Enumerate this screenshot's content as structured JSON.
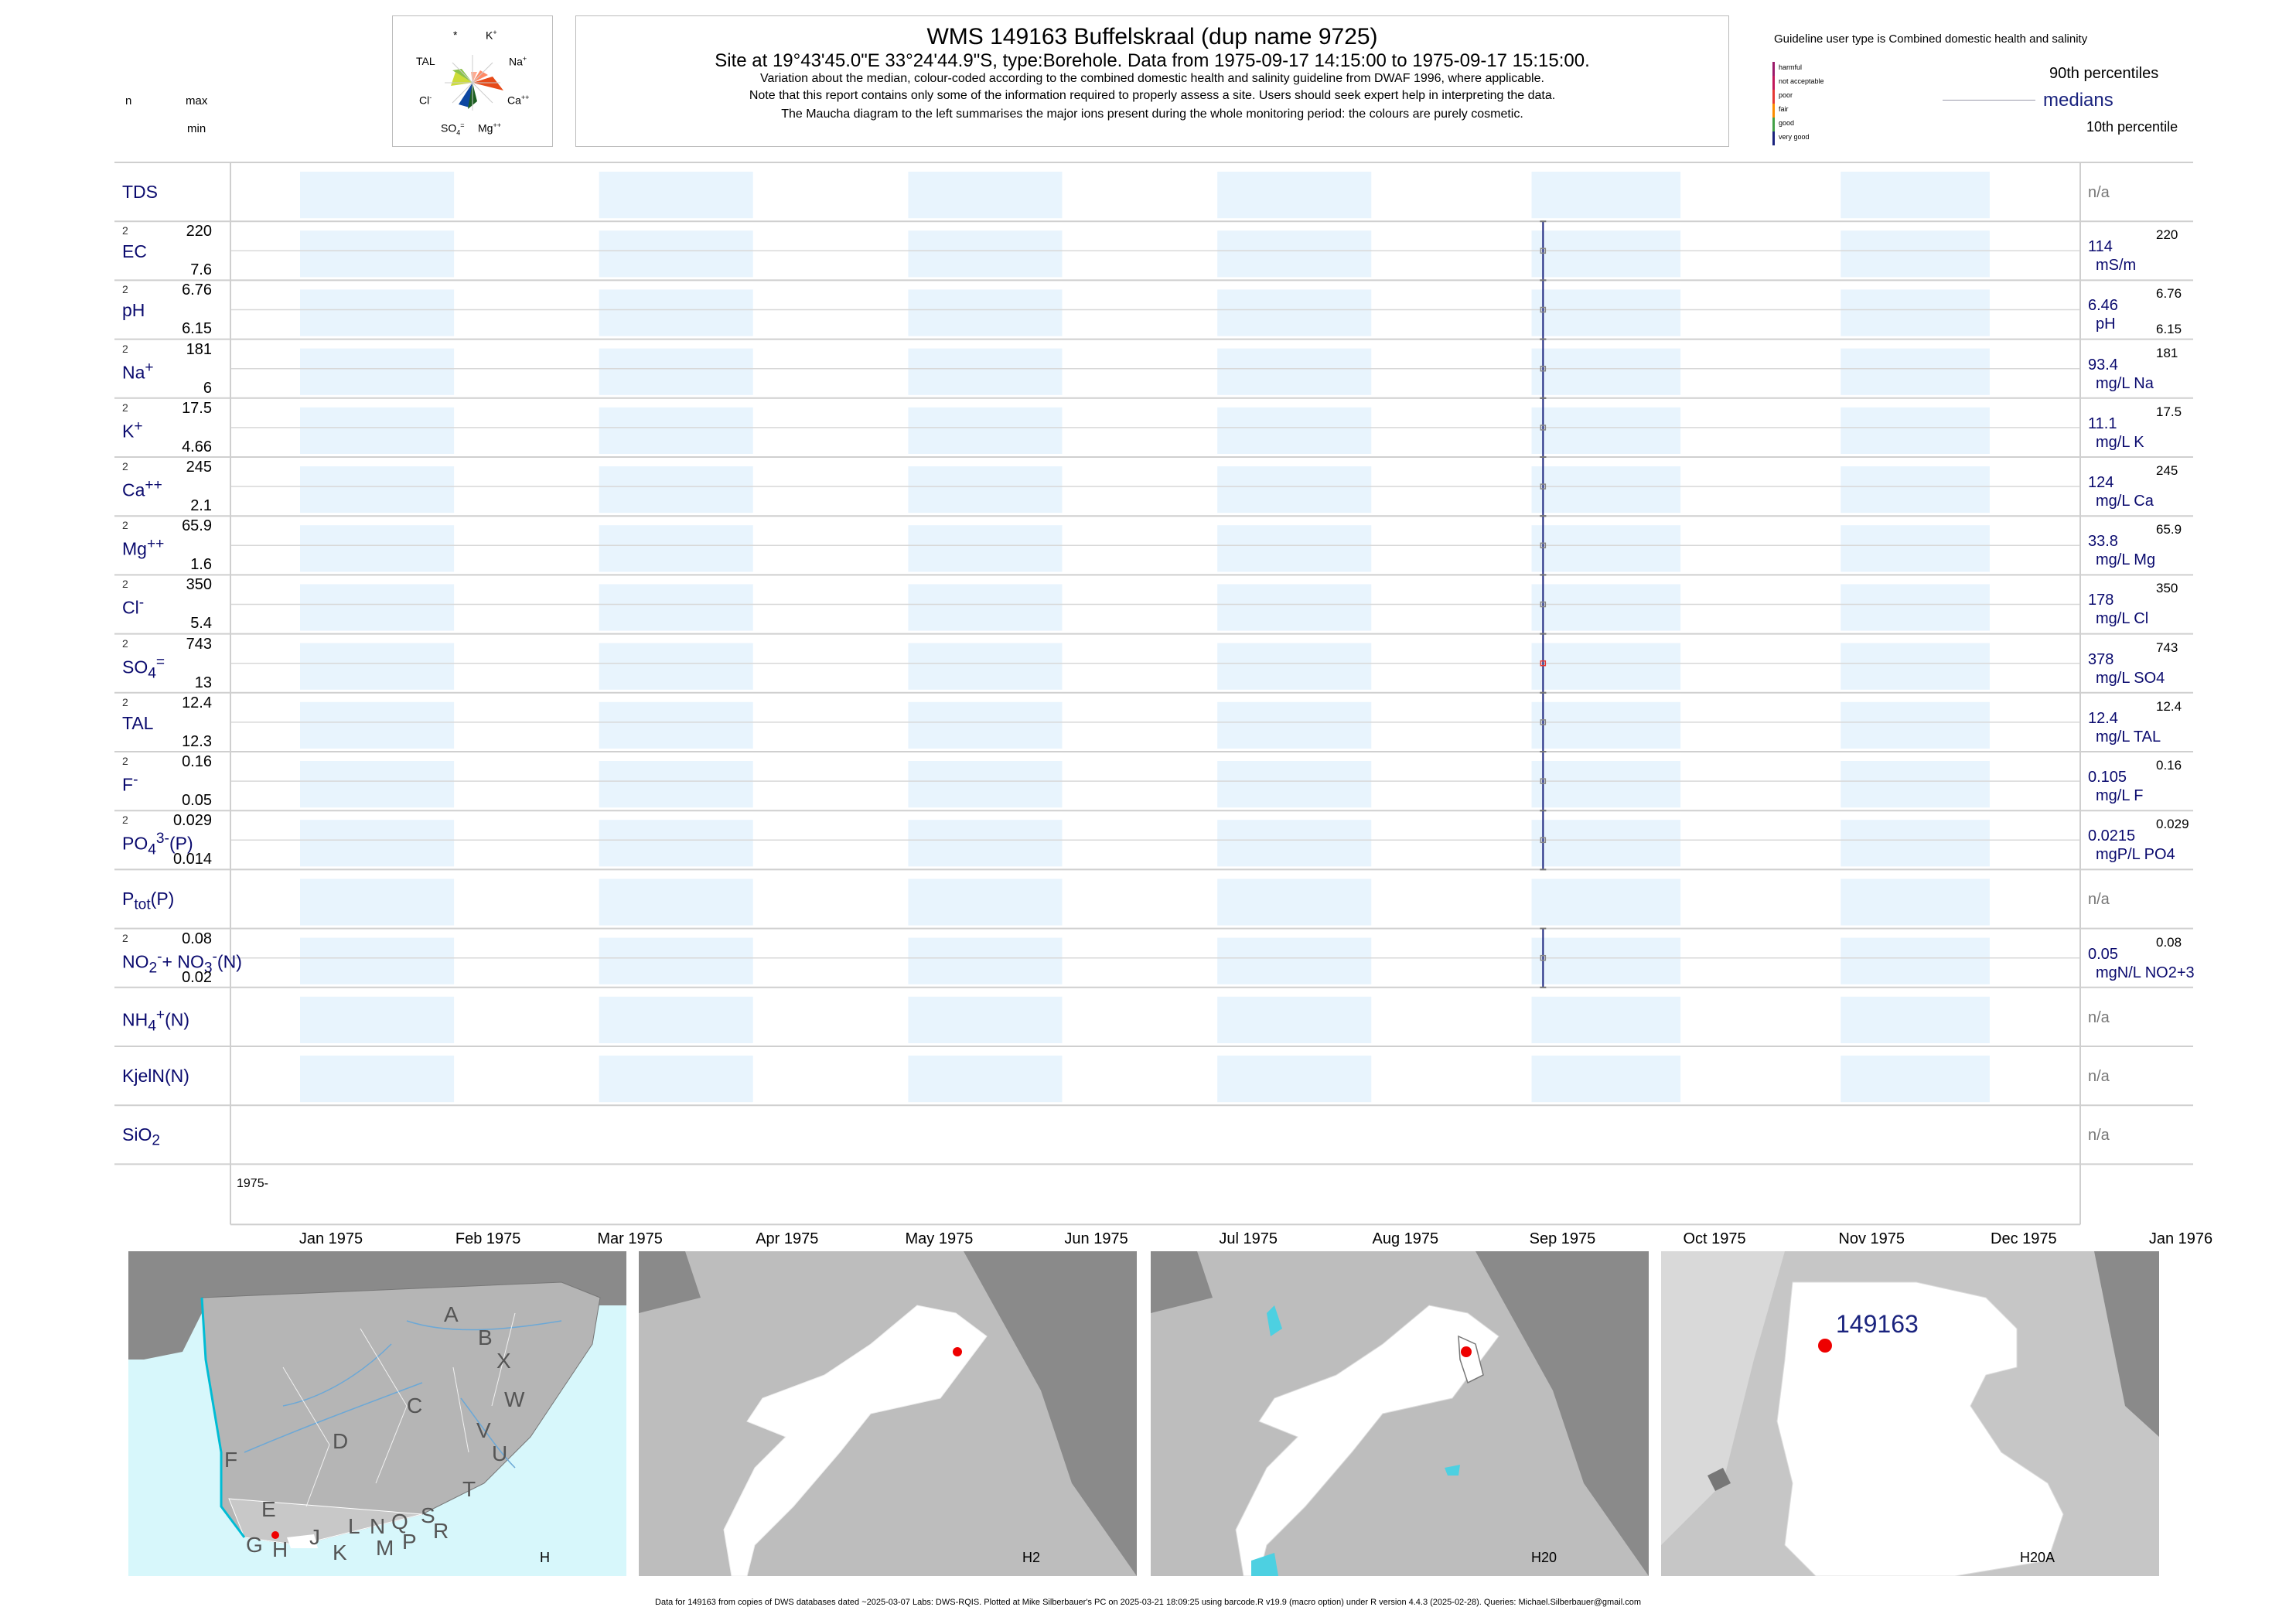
{
  "header": {
    "title": "WMS 149163  Buffelskraal (dup name 9725)",
    "subtitle": "Site at 19°43'45.0\"E 33°24'44.9\"S, type:Borehole.  Data from 1975-09-17 14:15:00 to 1975-09-17 15:15:00.",
    "line1": "Variation about the median,  colour-coded according to the combined domestic health and salinity guideline from DWAF 1996, where applicable.",
    "line2": "Note that this report contains only some of the information required to properly assess a site. Users should seek expert help in interpreting the data.",
    "line3": "The Maucha diagram to the left summarises the major ions present during the whole monitoring period: the colours are purely cosmetic."
  },
  "left_key": {
    "n": "n",
    "max": "max",
    "min": "min"
  },
  "maucha": {
    "labels": {
      "star": "*",
      "k": "K",
      "k_sup": "+",
      "tal": "TAL",
      "na": "Na",
      "na_sup": "+",
      "cl": "Cl",
      "cl_sup": "-",
      "ca": "Ca",
      "ca_sup": "++",
      "so4": "SO",
      "so4_sub": "4",
      "so4_sup": "=",
      "mg": "Mg",
      "mg_sup": "++"
    }
  },
  "guideline": {
    "title": "Guideline user type is Combined domestic health and salinity",
    "levels": [
      "harmful",
      "not acceptable",
      "poor",
      "fair",
      "good",
      "very good"
    ],
    "colors": [
      "#9b1b6a",
      "#c2185b",
      "#e53935",
      "#fb8c00",
      "#43a047",
      "#1a237e"
    ],
    "p90": "90th percentiles",
    "medians": "medians",
    "p10": "10th percentile"
  },
  "chart_data": {
    "type": "timeseries-panel",
    "x_range": [
      "1975-01-01",
      "1976-01-01"
    ],
    "axis_start_label": "1975-",
    "x_ticks": [
      "Jan 1975",
      "Feb 1975",
      "Mar 1975",
      "Apr 1975",
      "May 1975",
      "Jun 1975",
      "Jul 1975",
      "Aug 1975",
      "Sep 1975",
      "Oct 1975",
      "Nov 1975",
      "Dec 1975",
      "Jan 1976"
    ],
    "sample_date": "1975-09-17",
    "rows": [
      {
        "key": "tds",
        "label": "TDS",
        "html": "TDS",
        "right": "n/a"
      },
      {
        "key": "ec",
        "html": "EC",
        "n": "2",
        "max": "220",
        "min": "7.6",
        "median": "114",
        "unit": "mS/m",
        "rmax": "220",
        "has_data": true
      },
      {
        "key": "ph",
        "html": "pH",
        "n": "2",
        "max": "6.76",
        "min": "6.15",
        "median": "6.46",
        "unit": "pH",
        "rmax": "6.76",
        "rmin": "6.15",
        "has_data": true
      },
      {
        "key": "na",
        "html": "Na<sup>+</sup>",
        "n": "2",
        "max": "181",
        "min": "6",
        "median": "93.4",
        "unit": "mg/L Na",
        "rmax": "181",
        "has_data": true
      },
      {
        "key": "k",
        "html": "K<sup>+</sup>",
        "n": "2",
        "max": "17.5",
        "min": "4.66",
        "median": "11.1",
        "unit": "mg/L K",
        "rmax": "17.5",
        "has_data": true
      },
      {
        "key": "ca",
        "html": "Ca<sup>++</sup>",
        "n": "2",
        "max": "245",
        "min": "2.1",
        "median": "124",
        "unit": "mg/L Ca",
        "rmax": "245",
        "has_data": true
      },
      {
        "key": "mg",
        "html": "Mg<sup>++</sup>",
        "n": "2",
        "max": "65.9",
        "min": "1.6",
        "median": "33.8",
        "unit": "mg/L Mg",
        "rmax": "65.9",
        "has_data": true
      },
      {
        "key": "cl",
        "html": "Cl<sup>-</sup>",
        "n": "2",
        "max": "350",
        "min": "5.4",
        "median": "178",
        "unit": "mg/L Cl",
        "rmax": "350",
        "has_data": true
      },
      {
        "key": "so4",
        "html": "SO<sub>4</sub><sup>=</sup>",
        "n": "2",
        "max": "743",
        "min": "13",
        "median": "378",
        "unit": "mg/L SO4",
        "rmax": "743",
        "has_data": true
      },
      {
        "key": "tal",
        "html": "TAL",
        "n": "2",
        "max": "12.4",
        "min": "12.3",
        "median": "12.4",
        "unit": "mg/L TAL",
        "rmax": "12.4",
        "has_data": true
      },
      {
        "key": "f",
        "html": "F<sup>-</sup>",
        "n": "2",
        "max": "0.16",
        "min": "0.05",
        "median": "0.105",
        "unit": "mg/L F",
        "rmax": "0.16",
        "has_data": true
      },
      {
        "key": "po4",
        "html": "PO<sub>4</sub><sup>3-</sup>(P)",
        "n": "2",
        "max": "0.029",
        "min": "0.014",
        "median": "0.0215",
        "unit": "mgP/L PO4",
        "rmax": "0.029",
        "has_data": true
      },
      {
        "key": "ptot",
        "html": "P<sub>tot</sub>(P)",
        "right": "n/a"
      },
      {
        "key": "no23",
        "html": "NO<sub>2</sub><sup>-</sup>+ NO<sub>3</sub><sup>-</sup>(N)",
        "n": "2",
        "max": "0.08",
        "min": "0.02",
        "median": "0.05",
        "unit": "mgN/L NO2+3",
        "rmax": "0.08",
        "has_data": true
      },
      {
        "key": "nh4",
        "html": "NH<sub>4</sub><sup>+</sup>(N)",
        "right": "n/a"
      },
      {
        "key": "kjeln",
        "html": "KjelN(N)",
        "right": "n/a"
      },
      {
        "key": "sio2",
        "html": "SiO<sub>2</sub>",
        "right": "n/a",
        "no_bands": true
      }
    ]
  },
  "maps": {
    "regional_letters": [
      "A",
      "B",
      "X",
      "W",
      "C",
      "V",
      "U",
      "D",
      "T",
      "F",
      "E",
      "L",
      "N",
      "Q",
      "S",
      "R",
      "J",
      "K",
      "M",
      "P",
      "G",
      "H"
    ],
    "labels": [
      "H",
      "H2",
      "H20",
      "H20A"
    ],
    "site_label": "149163"
  },
  "footer": "Data for 149163 from copies of DWS databases dated ~2025-03-07 Labs: DWS-RQIS. Plotted at Mike Silberbauer's PC on 2025-03-21 18:09:25 using barcode.R v19.9 (macro option) under R version 4.4.3 (2025-02-28). Queries: Michael.Silberbauer@gmail.com"
}
